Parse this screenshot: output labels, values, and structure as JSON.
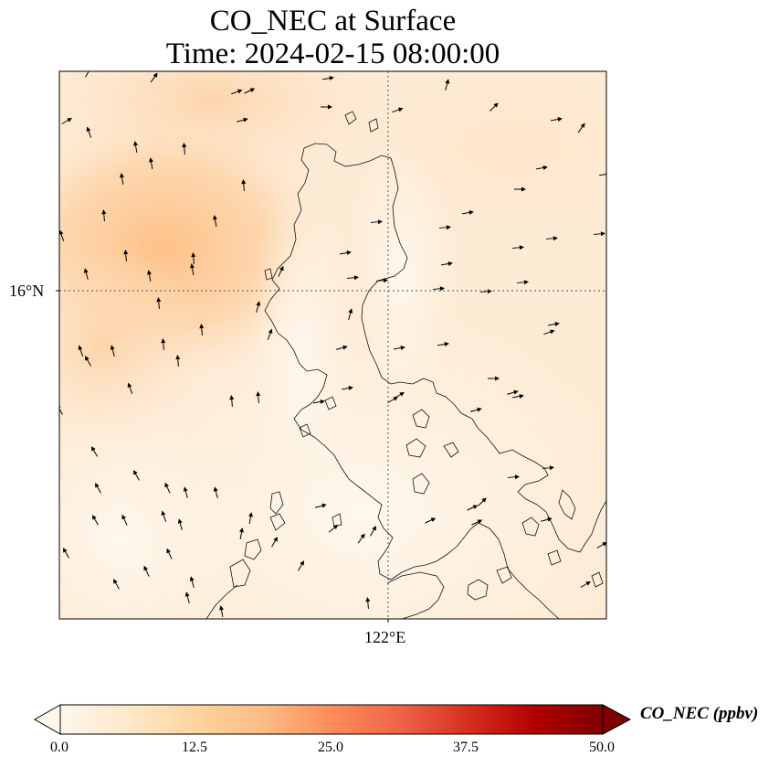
{
  "title_line1": "CO_NEC at Surface",
  "title_line2": "Time: 2024-02-15 08:00:00",
  "lat_label": "16°N",
  "lon_label": "122°E",
  "colorbar": {
    "label": "CO_NEC (ppbv)",
    "ticks": [
      "0.0",
      "12.5",
      "25.0",
      "37.5",
      "50.0"
    ],
    "min": 0,
    "max": 50,
    "extend": "both",
    "colormap": [
      "#fff7ec",
      "#fee8c8",
      "#fdd49e",
      "#fdbb84",
      "#fc8d59",
      "#ef6548",
      "#d7301f",
      "#b30000",
      "#7f0000"
    ]
  },
  "chart_data": {
    "type": "heatmap",
    "title": "CO_NEC at Surface",
    "subtitle": "Time: 2024-02-15 08:00:00",
    "units": "ppbv",
    "value_range": [
      0,
      50
    ],
    "gridlines": {
      "latitude": [
        16
      ],
      "longitude": [
        122
      ]
    },
    "map_features": [
      "coastlines",
      "wind vectors"
    ],
    "field_description_levels": {
      "northwest_sea_max": 22,
      "north_coast": 15,
      "southwest_sea": 3,
      "interior_luzon": 2,
      "east_sea": 6
    }
  }
}
